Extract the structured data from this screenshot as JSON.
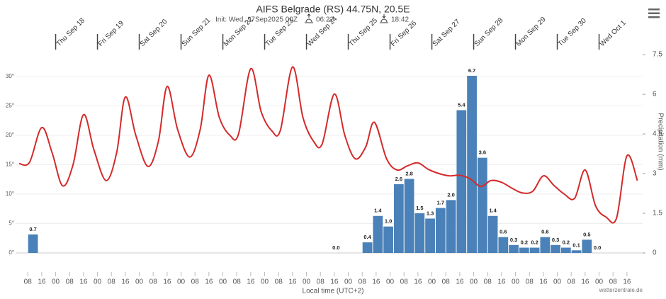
{
  "chart_data": {
    "type": "combo",
    "title": "AIFS Belgrade (RS) 44.75N, 20.5E",
    "subtitle": "Init: Wed, 17Sep2025 00Z",
    "sunrise": "06:22",
    "sunset": "18:42",
    "x_label": "Local time (UTC+2)",
    "y2_label": "Precipitation (mm)",
    "credit": "wetterzentrale.de",
    "xlim": [
      "2025-09-17T01:00",
      "2025-10-02T01:00"
    ],
    "ylim": [
      0,
      37.2
    ],
    "y2lim": [
      0,
      8.28
    ],
    "grid": true,
    "yticks": [
      {
        "value": 0,
        "label": "0°"
      },
      {
        "value": 5,
        "label": "5°"
      },
      {
        "value": 10,
        "label": "10°"
      },
      {
        "value": 15,
        "label": "15°"
      },
      {
        "value": 20,
        "label": "20°"
      },
      {
        "value": 25,
        "label": "25°"
      },
      {
        "value": 30,
        "label": "30°"
      }
    ],
    "y2ticks": [
      0,
      1.5,
      3,
      4.5,
      6,
      7.5
    ],
    "day_ticks": [
      {
        "value": "2025-09-18T00:00",
        "label": "Thu Sep 18"
      },
      {
        "value": "2025-09-19T00:00",
        "label": "Fri Sep 19"
      },
      {
        "value": "2025-09-20T00:00",
        "label": "Sat Sep 20"
      },
      {
        "value": "2025-09-21T00:00",
        "label": "Sun Sep 21"
      },
      {
        "value": "2025-09-22T00:00",
        "label": "Mon Sep 22"
      },
      {
        "value": "2025-09-23T00:00",
        "label": "Tue Sep 23"
      },
      {
        "value": "2025-09-24T00:00",
        "label": "Wed Sep 24"
      },
      {
        "value": "2025-09-25T00:00",
        "label": "Thu Sep 25"
      },
      {
        "value": "2025-09-26T00:00",
        "label": "Fri Sep 26"
      },
      {
        "value": "2025-09-27T00:00",
        "label": "Sat Sep 27"
      },
      {
        "value": "2025-09-28T00:00",
        "label": "Sun Sep 28"
      },
      {
        "value": "2025-09-29T00:00",
        "label": "Mon Sep 29"
      },
      {
        "value": "2025-09-30T00:00",
        "label": "Tue Sep 30"
      },
      {
        "value": "2025-10-01T00:00",
        "label": "Wed Oct 1"
      }
    ],
    "xticks": [
      {
        "value": "2025-09-17T08:00",
        "label": "08"
      },
      {
        "value": "2025-09-17T16:00",
        "label": "16"
      },
      {
        "value": "2025-09-18T00:00",
        "label": "00"
      },
      {
        "value": "2025-09-18T08:00",
        "label": "08"
      },
      {
        "value": "2025-09-18T16:00",
        "label": "16"
      },
      {
        "value": "2025-09-19T00:00",
        "label": "00"
      },
      {
        "value": "2025-09-19T08:00",
        "label": "08"
      },
      {
        "value": "2025-09-19T16:00",
        "label": "16"
      },
      {
        "value": "2025-09-20T00:00",
        "label": "00"
      },
      {
        "value": "2025-09-20T08:00",
        "label": "08"
      },
      {
        "value": "2025-09-20T16:00",
        "label": "16"
      },
      {
        "value": "2025-09-21T00:00",
        "label": "00"
      },
      {
        "value": "2025-09-21T08:00",
        "label": "08"
      },
      {
        "value": "2025-09-21T16:00",
        "label": "16"
      },
      {
        "value": "2025-09-22T00:00",
        "label": "00"
      },
      {
        "value": "2025-09-22T08:00",
        "label": "08"
      },
      {
        "value": "2025-09-22T16:00",
        "label": "16"
      },
      {
        "value": "2025-09-23T00:00",
        "label": "00"
      },
      {
        "value": "2025-09-23T08:00",
        "label": "08"
      },
      {
        "value": "2025-09-23T16:00",
        "label": "16"
      },
      {
        "value": "2025-09-24T00:00",
        "label": "00"
      },
      {
        "value": "2025-09-24T08:00",
        "label": "08"
      },
      {
        "value": "2025-09-24T16:00",
        "label": "16"
      },
      {
        "value": "2025-09-25T00:00",
        "label": "00"
      },
      {
        "value": "2025-09-25T08:00",
        "label": "08"
      },
      {
        "value": "2025-09-25T16:00",
        "label": "16"
      },
      {
        "value": "2025-09-26T00:00",
        "label": "00"
      },
      {
        "value": "2025-09-26T08:00",
        "label": "08"
      },
      {
        "value": "2025-09-26T16:00",
        "label": "16"
      },
      {
        "value": "2025-09-27T00:00",
        "label": "00"
      },
      {
        "value": "2025-09-27T08:00",
        "label": "08"
      },
      {
        "value": "2025-09-27T16:00",
        "label": "16"
      },
      {
        "value": "2025-09-28T00:00",
        "label": "00"
      },
      {
        "value": "2025-09-28T08:00",
        "label": "08"
      },
      {
        "value": "2025-09-28T16:00",
        "label": "16"
      },
      {
        "value": "2025-09-29T00:00",
        "label": "00"
      },
      {
        "value": "2025-09-29T08:00",
        "label": "08"
      },
      {
        "value": "2025-09-29T16:00",
        "label": "16"
      },
      {
        "value": "2025-09-30T00:00",
        "label": "00"
      },
      {
        "value": "2025-09-30T08:00",
        "label": "08"
      },
      {
        "value": "2025-09-30T16:00",
        "label": "16"
      },
      {
        "value": "2025-10-01T00:00",
        "label": "00"
      },
      {
        "value": "2025-10-01T08:00",
        "label": "08"
      },
      {
        "value": "2025-10-01T16:00",
        "label": "16"
      }
    ],
    "series": [
      {
        "type": "bar",
        "axis": "y2",
        "color": "#4a81b8",
        "step_hours": 6,
        "x": [
          "2025-09-17T08:00",
          "2025-09-24T14:00",
          "2025-09-25T08:00",
          "2025-09-25T14:00",
          "2025-09-25T20:00",
          "2025-09-26T02:00",
          "2025-09-26T08:00",
          "2025-09-26T14:00",
          "2025-09-26T20:00",
          "2025-09-27T02:00",
          "2025-09-27T08:00",
          "2025-09-27T14:00",
          "2025-09-27T20:00",
          "2025-09-28T02:00",
          "2025-09-28T08:00",
          "2025-09-28T14:00",
          "2025-09-28T20:00",
          "2025-09-29T02:00",
          "2025-09-29T08:00",
          "2025-09-29T14:00",
          "2025-09-29T20:00",
          "2025-09-30T02:00",
          "2025-09-30T08:00",
          "2025-09-30T14:00",
          "2025-09-30T20:00"
        ],
        "values": [
          0.7,
          0,
          0.4,
          1.4,
          1,
          2.6,
          2.8,
          1.5,
          1.3,
          1.7,
          2,
          5.4,
          6.7,
          3.6,
          1.4,
          0.6,
          0.3,
          0.2,
          0.2,
          0.6,
          0.3,
          0.2,
          0.1,
          0.5,
          0
        ],
        "value_labels": [
          "0.7",
          "0.0",
          "0.4",
          "1.4",
          "1.0",
          "2.6",
          "2.8",
          "1.5",
          "1.3",
          "1.7",
          "2.0",
          "5.4",
          "6.7",
          "3.6",
          "1.4",
          "0.6",
          "0.3",
          "0.2",
          "0.2",
          "0.6",
          "0.3",
          "0.2",
          "0.1",
          "0.5",
          "0.0"
        ]
      },
      {
        "type": "line",
        "color": "#d42a2a",
        "x": [
          "2025-09-17T03:00",
          "2025-09-17T09:00",
          "2025-09-17T16:00",
          "2025-09-17T22:00",
          "2025-09-18T04:00",
          "2025-09-18T10:00",
          "2025-09-18T16:00",
          "2025-09-18T22:00",
          "2025-09-19T05:00",
          "2025-09-19T11:00",
          "2025-09-19T16:00",
          "2025-09-19T22:00",
          "2025-09-20T05:00",
          "2025-09-20T11:00",
          "2025-09-20T16:00",
          "2025-09-20T22:00",
          "2025-09-21T05:00",
          "2025-09-21T11:00",
          "2025-09-21T16:00",
          "2025-09-21T22:00",
          "2025-09-22T04:00",
          "2025-09-22T09:00",
          "2025-09-22T16:00",
          "2025-09-22T22:00",
          "2025-09-23T04:00",
          "2025-09-23T09:00",
          "2025-09-23T16:00",
          "2025-09-23T22:00",
          "2025-09-24T04:00",
          "2025-09-24T09:00",
          "2025-09-24T16:00",
          "2025-09-24T22:00",
          "2025-09-25T04:00",
          "2025-09-25T10:00",
          "2025-09-25T15:00",
          "2025-09-25T22:00",
          "2025-09-26T04:00",
          "2025-09-26T10:00",
          "2025-09-26T16:00",
          "2025-09-26T22:00",
          "2025-09-27T04:00",
          "2025-09-27T10:00",
          "2025-09-27T16:00",
          "2025-09-27T22:00",
          "2025-09-28T04:00",
          "2025-09-28T10:00",
          "2025-09-28T16:00",
          "2025-09-28T22:00",
          "2025-09-29T04:00",
          "2025-09-29T10:00",
          "2025-09-29T16:00",
          "2025-09-29T22:00",
          "2025-09-30T04:00",
          "2025-09-30T10:00",
          "2025-09-30T16:00",
          "2025-09-30T22:00",
          "2025-10-01T04:00",
          "2025-10-01T10:00",
          "2025-10-01T16:00",
          "2025-10-01T22:00"
        ],
        "values": [
          15.2,
          15.4,
          21.3,
          17,
          11.4,
          15,
          23.5,
          17.5,
          12.3,
          17,
          26.5,
          20,
          14.7,
          19,
          28.3,
          21,
          16.3,
          21,
          30.2,
          23,
          20,
          20.2,
          31.3,
          24,
          20.8,
          20.8,
          31.6,
          23,
          19,
          18.5,
          27,
          20,
          16,
          18,
          22.2,
          16,
          14.1,
          14.8,
          15.3,
          14.2,
          13.5,
          13.1,
          13.2,
          12.6,
          11.3,
          12.3,
          12,
          11,
          10.2,
          10.5,
          13.1,
          11.5,
          10,
          9.3,
          14.1,
          8,
          6.1,
          5.9,
          16.5,
          12.3
        ]
      }
    ]
  }
}
